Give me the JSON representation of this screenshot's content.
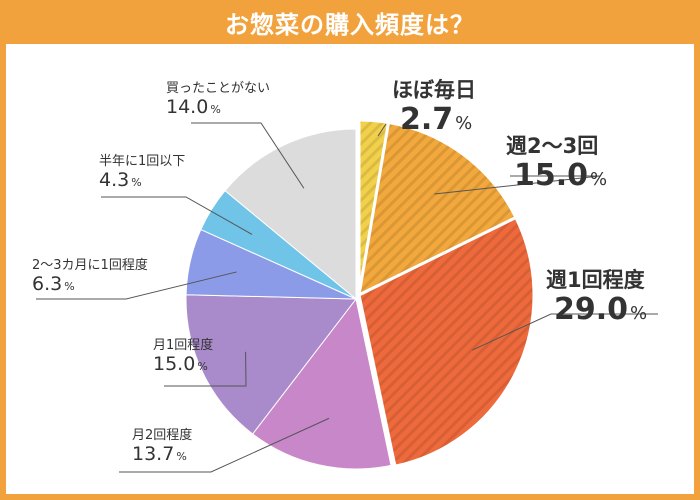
{
  "page": {
    "title": "お惣菜の購入頻度は？"
  },
  "colors": {
    "frame": "#F2A23C",
    "leader": "#555555"
  },
  "chart_data": {
    "type": "pie",
    "title": "お惣菜の購入頻度は？",
    "start": "top, clockwise",
    "slices": [
      {
        "label": "ほぼ毎日",
        "value": 2.7,
        "value_text": "2.7",
        "unit": "%",
        "color": "#F2D04A",
        "striped": true,
        "highlight": true
      },
      {
        "label": "週2～3回",
        "value": 15.0,
        "value_text": "15.0",
        "unit": "%",
        "color": "#F2A83C",
        "striped": true,
        "highlight": true
      },
      {
        "label": "週1回程度",
        "value": 29.0,
        "value_text": "29.0",
        "unit": "%",
        "color": "#EE6A3C",
        "striped": true,
        "highlight": true
      },
      {
        "label": "月2回程度",
        "value": 13.7,
        "value_text": "13.7",
        "unit": "%",
        "color": "#C887C8",
        "striped": false,
        "highlight": false
      },
      {
        "label": "月1回程度",
        "value": 15.0,
        "value_text": "15.0",
        "unit": "%",
        "color": "#A98BCB",
        "striped": false,
        "highlight": false
      },
      {
        "label": "2～3カ月に1回程度",
        "value": 6.3,
        "value_text": "6.3",
        "unit": "%",
        "color": "#8C9BE8",
        "striped": false,
        "highlight": false
      },
      {
        "label": "半年に1回以下",
        "value": 4.3,
        "value_text": "4.3",
        "unit": "%",
        "color": "#6FC4E8",
        "striped": false,
        "highlight": false
      },
      {
        "label": "買ったことがない",
        "value": 14.0,
        "value_text": "14.0",
        "unit": "%",
        "color": "#DCDCDC",
        "striped": false,
        "highlight": false
      }
    ]
  }
}
